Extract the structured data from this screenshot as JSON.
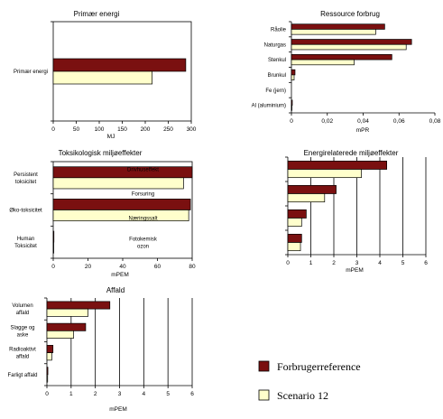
{
  "colors": {
    "series_1": "#7a1010",
    "series_2": "#ffffcc",
    "frame": "#000000"
  },
  "legend": [
    {
      "label": "Forbrugerreference"
    },
    {
      "label": "Scenario 12"
    }
  ],
  "chart_data": [
    {
      "type": "bar",
      "orientation": "horizontal",
      "title": "Primær energi",
      "xlabel": "MJ",
      "xlim": [
        0,
        300
      ],
      "xticks": [
        "0",
        "50",
        "100",
        "150",
        "200",
        "250",
        "300"
      ],
      "categories": [
        [
          "Primær energi"
        ]
      ],
      "series": [
        {
          "name": "Forbrugerreference",
          "values": [
            288
          ]
        },
        {
          "name": "Scenario 12",
          "values": [
            215
          ]
        }
      ]
    },
    {
      "type": "bar",
      "orientation": "horizontal",
      "title": "Ressource forbrug",
      "xlabel": "mPR",
      "xlim": [
        0,
        0.08
      ],
      "xticks": [
        "0",
        "0,02",
        "0,04",
        "0,06",
        "0,08"
      ],
      "categories": [
        [
          "Råolie"
        ],
        [
          "Naturgas"
        ],
        [
          "Stenkul"
        ],
        [
          "Brunkul"
        ],
        [
          "Fe (jern)"
        ],
        [
          "Al (aluminium)"
        ]
      ],
      "series": [
        {
          "name": "Forbrugerreference",
          "values": [
            0.052,
            0.067,
            0.056,
            0.002,
            0.0,
            0.0005
          ]
        },
        {
          "name": "Scenario 12",
          "values": [
            0.047,
            0.064,
            0.035,
            0.0015,
            0.0,
            0.0003
          ]
        }
      ]
    },
    {
      "type": "bar",
      "orientation": "horizontal",
      "title": "Toksikologisk miljøeffekter",
      "xlabel": "mPEM",
      "xlim": [
        0,
        80
      ],
      "xticks": [
        "0",
        "20",
        "40",
        "60",
        "80"
      ],
      "categories": [
        [
          "Persistent",
          "toksicitet"
        ],
        [
          "Øko-toksicitet"
        ],
        [
          "Human",
          "Toksicitet"
        ]
      ],
      "series": [
        {
          "name": "Forbrugerreference",
          "values": [
            80,
            79,
            0.4
          ]
        },
        {
          "name": "Scenario 12",
          "values": [
            75,
            78,
            0.3
          ]
        }
      ]
    },
    {
      "type": "bar",
      "orientation": "horizontal",
      "title": "Energirelaterede miljøeffekter",
      "xlabel": "mPEM",
      "xlim": [
        0,
        6
      ],
      "xticks": [
        "0",
        "1",
        "2",
        "3",
        "4",
        "5",
        "6"
      ],
      "categories": [
        [
          "Drivhuseffekt"
        ],
        [
          "Forsuring"
        ],
        [
          "Næringssalt"
        ],
        [
          "Fotokemisk",
          "ozon"
        ]
      ],
      "series": [
        {
          "name": "Forbrugerreference",
          "values": [
            4.3,
            2.1,
            0.8,
            0.6
          ]
        },
        {
          "name": "Scenario 12",
          "values": [
            3.2,
            1.6,
            0.6,
            0.55
          ]
        }
      ]
    },
    {
      "type": "bar",
      "orientation": "horizontal",
      "title": "Affald",
      "xlabel": "mPEM",
      "xlim": [
        0,
        6
      ],
      "xticks": [
        "0",
        "1",
        "2",
        "3",
        "4",
        "5",
        "6"
      ],
      "categories": [
        [
          "Volumen",
          "affald"
        ],
        [
          "Slagge og",
          "aske"
        ],
        [
          "Radioaktivt",
          "affald"
        ],
        [
          "Farligt affald"
        ]
      ],
      "series": [
        {
          "name": "Forbrugerreference",
          "values": [
            2.6,
            1.6,
            0.25,
            0.04
          ]
        },
        {
          "name": "Scenario 12",
          "values": [
            1.7,
            1.1,
            0.2,
            0.03
          ]
        }
      ]
    }
  ]
}
